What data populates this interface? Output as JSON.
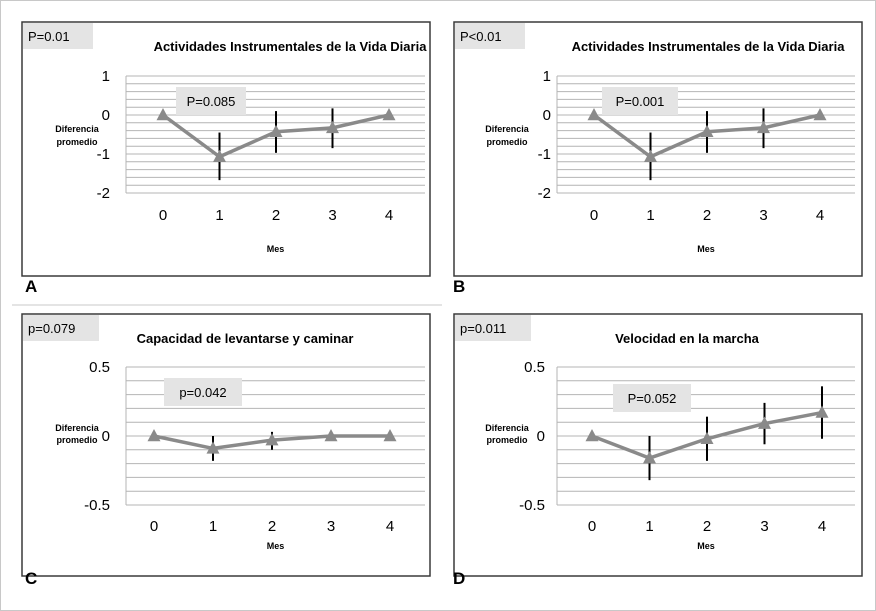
{
  "chart_data": [
    {
      "panel_letter": "A",
      "type": "line",
      "title": "Actividades Instrumentales de la Vida Diaria",
      "corner_label": "P=0.01",
      "inner_label": "P=0.085",
      "ylabel": "Diferencia promedio",
      "xlabel": "Mes",
      "categories": [
        "0",
        "1",
        "2",
        "3",
        "4"
      ],
      "ylim": [
        -2,
        1
      ],
      "yticks": [
        1,
        0,
        -1,
        -2
      ],
      "ytick_labels": [
        "1",
        "0",
        "-1",
        "-2"
      ],
      "grid_step": 0.2,
      "series": [
        {
          "values": [
            0,
            -1.07,
            -0.43,
            -0.33,
            0
          ],
          "error_low": [
            0,
            -1.67,
            -0.97,
            -0.85,
            0
          ],
          "error_high": [
            0,
            -0.45,
            0.1,
            0.17,
            0
          ]
        }
      ]
    },
    {
      "panel_letter": "B",
      "type": "line",
      "title": "Actividades Instrumentales de la Vida Diaria",
      "corner_label": "P<0.01",
      "inner_label": "P=0.001",
      "ylabel": "Diferencia promedio",
      "xlabel": "Mes",
      "categories": [
        "0",
        "1",
        "2",
        "3",
        "4"
      ],
      "ylim": [
        -2,
        1
      ],
      "yticks": [
        1,
        0,
        -1,
        -2
      ],
      "ytick_labels": [
        "1",
        "0",
        "-1",
        "-2"
      ],
      "grid_step": 0.2,
      "series": [
        {
          "values": [
            0,
            -1.07,
            -0.43,
            -0.33,
            0
          ],
          "error_low": [
            0,
            -1.67,
            -0.97,
            -0.85,
            0
          ],
          "error_high": [
            0,
            -0.45,
            0.1,
            0.17,
            0
          ]
        }
      ]
    },
    {
      "panel_letter": "C",
      "type": "line",
      "title": "Capacidad de levantarse y caminar",
      "corner_label": "p=0.079",
      "inner_label": "p=0.042",
      "ylabel": "Diferencia promedio",
      "xlabel": "Mes",
      "categories": [
        "0",
        "1",
        "2",
        "3",
        "4"
      ],
      "ylim": [
        -0.5,
        0.5
      ],
      "yticks": [
        0.5,
        0,
        -0.5
      ],
      "ytick_labels": [
        "0.5",
        "0",
        "-0.5"
      ],
      "grid_step": 0.1,
      "series": [
        {
          "values": [
            0,
            -0.09,
            -0.03,
            0,
            0
          ],
          "error_low": [
            0,
            -0.18,
            -0.1,
            0,
            0
          ],
          "error_high": [
            0,
            0,
            0.03,
            0,
            0
          ]
        }
      ]
    },
    {
      "panel_letter": "D",
      "type": "line",
      "title": "Velocidad en la marcha",
      "corner_label": "p=0.011",
      "inner_label": "P=0.052",
      "ylabel": "Diferencia promedio",
      "xlabel": "Mes",
      "categories": [
        "0",
        "1",
        "2",
        "3",
        "4"
      ],
      "ylim": [
        -0.5,
        0.5
      ],
      "yticks": [
        0.5,
        0,
        -0.5
      ],
      "ytick_labels": [
        "0.5",
        "0",
        "-0.5"
      ],
      "grid_step": 0.1,
      "series": [
        {
          "values": [
            0,
            -0.16,
            -0.02,
            0.09,
            0.17
          ],
          "error_low": [
            0,
            -0.32,
            -0.18,
            -0.06,
            -0.02
          ],
          "error_high": [
            0,
            0,
            0.14,
            0.24,
            0.36
          ]
        }
      ]
    }
  ],
  "colors": {
    "line": "#8a8a8a",
    "marker": "#8a8a8a",
    "error_bar": "#000000",
    "grid": "#b4b4b4",
    "label_box": "#e4e4e4",
    "frame": "#3a3a3a"
  }
}
